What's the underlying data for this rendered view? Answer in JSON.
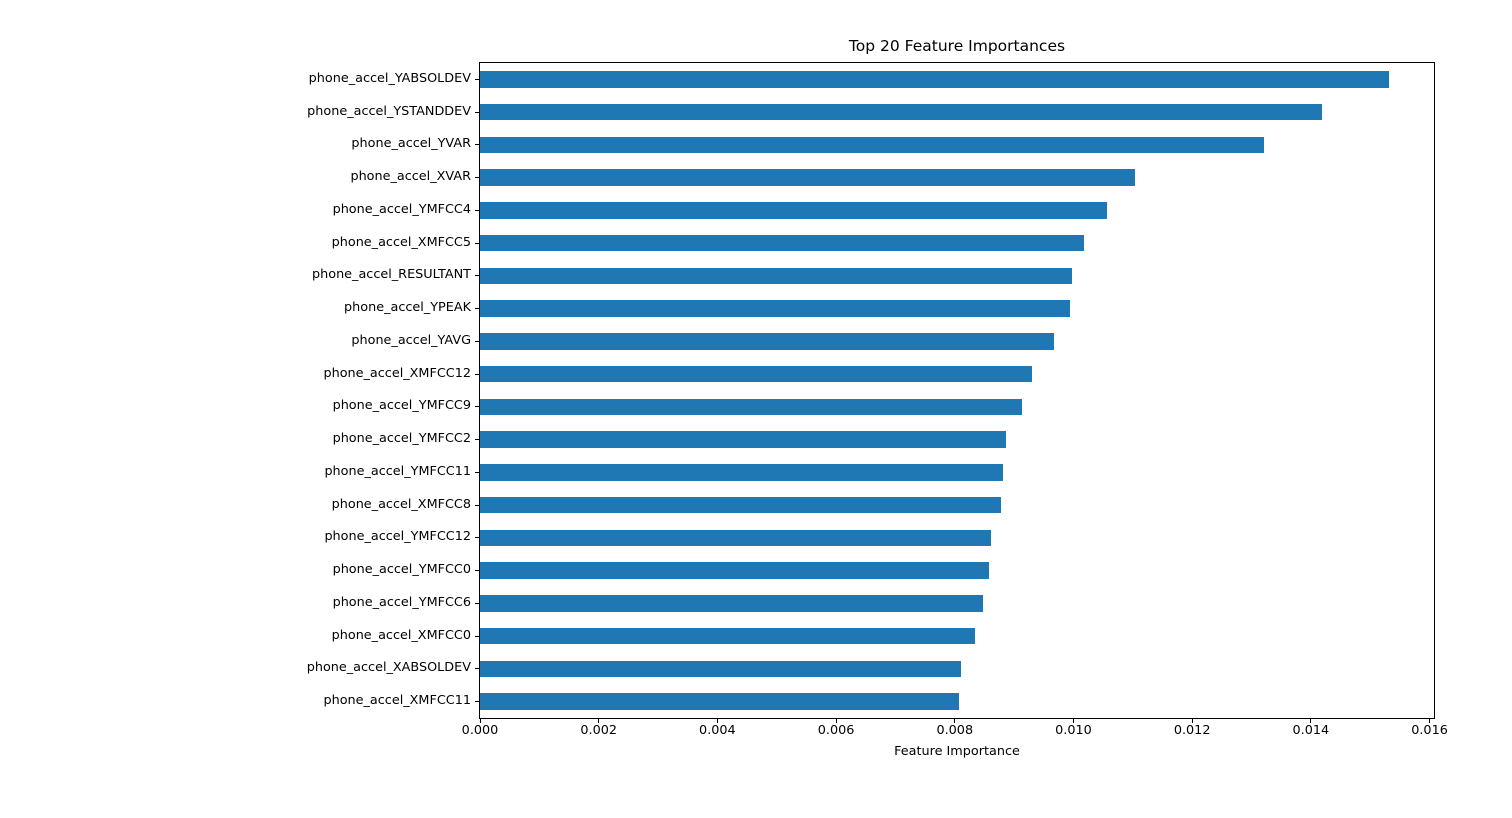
{
  "chart_data": {
    "type": "bar",
    "orientation": "horizontal",
    "title": "Top 20 Feature Importances",
    "xlabel": "Feature Importance",
    "ylabel": "",
    "bar_color": "#1f77b4",
    "axis_color": "#000000",
    "grid": false,
    "legend": "none",
    "xlim": [
      0,
      0.016075
    ],
    "xtick_values": [
      0,
      0.002,
      0.004,
      0.006,
      0.008,
      0.01,
      0.012,
      0.014,
      0.016
    ],
    "xtick_labels": [
      "0.000",
      "0.002",
      "0.004",
      "0.006",
      "0.008",
      "0.010",
      "0.012",
      "0.014",
      "0.016"
    ],
    "categories": [
      "phone_accel_YABSOLDEV",
      "phone_accel_YSTANDDEV",
      "phone_accel_YVAR",
      "phone_accel_XVAR",
      "phone_accel_YMFCC4",
      "phone_accel_XMFCC5",
      "phone_accel_RESULTANT",
      "phone_accel_YPEAK",
      "phone_accel_YAVG",
      "phone_accel_XMFCC12",
      "phone_accel_YMFCC9",
      "phone_accel_YMFCC2",
      "phone_accel_YMFCC11",
      "phone_accel_XMFCC8",
      "phone_accel_YMFCC12",
      "phone_accel_YMFCC0",
      "phone_accel_YMFCC6",
      "phone_accel_XMFCC0",
      "phone_accel_XABSOLDEV",
      "phone_accel_XMFCC11"
    ],
    "values": [
      0.01532,
      0.01419,
      0.01321,
      0.01103,
      0.01056,
      0.01017,
      0.00997,
      0.00994,
      0.00967,
      0.0093,
      0.00913,
      0.00886,
      0.00881,
      0.00878,
      0.00861,
      0.00857,
      0.00847,
      0.00834,
      0.0081,
      0.00807
    ]
  }
}
